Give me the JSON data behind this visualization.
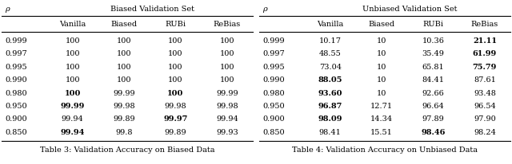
{
  "table3": {
    "title": "Biased Validation Set",
    "caption": "Table 3: Validation Accuracy on Biased Data",
    "col_headers": [
      "Vanilla",
      "Biased",
      "RUBi",
      "ReBias"
    ],
    "rows": [
      {
        "rho": "0.999",
        "values": [
          "100",
          "100",
          "100",
          "100"
        ],
        "bold": []
      },
      {
        "rho": "0.997",
        "values": [
          "100",
          "100",
          "100",
          "100"
        ],
        "bold": []
      },
      {
        "rho": "0.995",
        "values": [
          "100",
          "100",
          "100",
          "100"
        ],
        "bold": []
      },
      {
        "rho": "0.990",
        "values": [
          "100",
          "100",
          "100",
          "100"
        ],
        "bold": []
      },
      {
        "rho": "0.980",
        "values": [
          "100",
          "99.99",
          "100",
          "99.99"
        ],
        "bold": [
          0,
          2
        ]
      },
      {
        "rho": "0.950",
        "values": [
          "99.99",
          "99.98",
          "99.98",
          "99.98"
        ],
        "bold": [
          0
        ]
      },
      {
        "rho": "0.900",
        "values": [
          "99.94",
          "99.89",
          "99.97",
          "99.94"
        ],
        "bold": [
          2
        ]
      },
      {
        "rho": "0.850",
        "values": [
          "99.94",
          "99.8",
          "99.89",
          "99.93"
        ],
        "bold": [
          0
        ]
      }
    ]
  },
  "table4": {
    "title": "Unbiased Validation Set",
    "caption": "Table 4: Validation Accuracy on Unbiased Data",
    "col_headers": [
      "Vanilla",
      "Biased",
      "RUBi",
      "ReBias"
    ],
    "rows": [
      {
        "rho": "0.999",
        "values": [
          "10.17",
          "10",
          "10.36",
          "21.11"
        ],
        "bold": [
          3
        ]
      },
      {
        "rho": "0.997",
        "values": [
          "48.55",
          "10",
          "35.49",
          "61.99"
        ],
        "bold": [
          3
        ]
      },
      {
        "rho": "0.995",
        "values": [
          "73.04",
          "10",
          "65.81",
          "75.79"
        ],
        "bold": [
          3
        ]
      },
      {
        "rho": "0.990",
        "values": [
          "88.05",
          "10",
          "84.41",
          "87.61"
        ],
        "bold": [
          0
        ]
      },
      {
        "rho": "0.980",
        "values": [
          "93.60",
          "10",
          "92.66",
          "93.48"
        ],
        "bold": [
          0
        ]
      },
      {
        "rho": "0.950",
        "values": [
          "96.87",
          "12.71",
          "96.64",
          "96.54"
        ],
        "bold": [
          0
        ]
      },
      {
        "rho": "0.900",
        "values": [
          "98.09",
          "14.34",
          "97.89",
          "97.90"
        ],
        "bold": [
          0
        ]
      },
      {
        "rho": "0.850",
        "values": [
          "98.41",
          "15.51",
          "98.46",
          "98.24"
        ],
        "bold": [
          2
        ]
      }
    ]
  },
  "rho_symbol": "ρ",
  "bg_color": "#ffffff",
  "fontsize": 7.0
}
